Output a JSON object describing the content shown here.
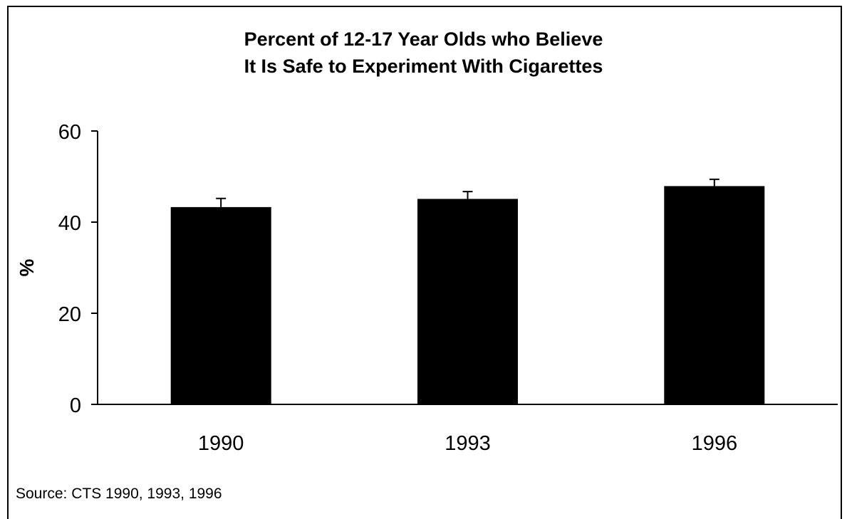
{
  "chart_data": {
    "type": "bar",
    "title_lines": [
      "Percent of 12-17 Year Olds who Believe",
      "It Is Safe to Experiment With Cigarettes"
    ],
    "xlabel": "",
    "ylabel": "%",
    "categories": [
      "1990",
      "1993",
      "1996"
    ],
    "values": [
      43.3,
      45.1,
      47.9
    ],
    "error_upper": [
      45.2,
      46.7,
      49.4
    ],
    "ylim": [
      0,
      60
    ],
    "yticks": [
      0,
      20,
      40,
      60
    ],
    "ytick_labels": [
      "0",
      "20",
      "40",
      "60"
    ],
    "grid": false,
    "legend": null,
    "bar_color": "#000000"
  },
  "source_note": "Source: CTS 1990, 1993, 1996"
}
